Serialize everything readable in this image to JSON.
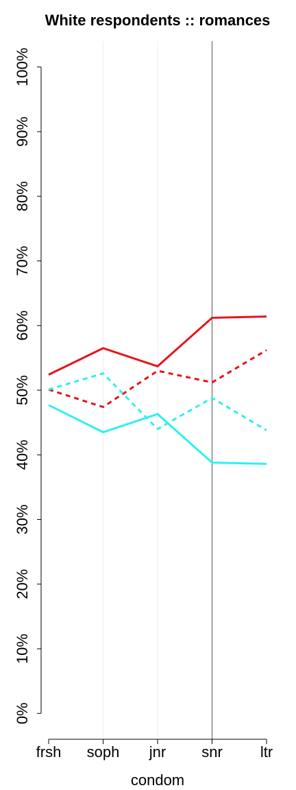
{
  "chart_data": {
    "type": "line",
    "title": "White respondents :: romances",
    "x_label": "condom",
    "categories": [
      "frsh",
      "soph",
      "jnr",
      "snr",
      "ltr"
    ],
    "series": [
      {
        "color": "#e8121a",
        "dashed": false,
        "values": [
          52.4,
          56.5,
          53.7,
          61.2,
          61.4
        ]
      },
      {
        "color": "#e8121a",
        "dashed": true,
        "values": [
          50.1,
          47.4,
          53.0,
          51.2,
          56.2
        ]
      },
      {
        "color": "#2ef0f0",
        "dashed": false,
        "values": [
          47.7,
          43.5,
          46.3,
          38.8,
          38.6
        ]
      },
      {
        "color": "#2ef0f0",
        "dashed": true,
        "values": [
          50.1,
          52.6,
          44.0,
          48.8,
          43.8
        ]
      }
    ],
    "ylim": [
      -4,
      104
    ],
    "yticks": [
      {
        "value": 0,
        "label": "0%"
      },
      {
        "value": 10,
        "label": "10%"
      },
      {
        "value": 20,
        "label": "20%"
      },
      {
        "value": 30,
        "label": "30%"
      },
      {
        "value": 40,
        "label": "40%"
      },
      {
        "value": 50,
        "label": "50%"
      },
      {
        "value": 60,
        "label": "60%"
      },
      {
        "value": 70,
        "label": "70%"
      },
      {
        "value": 80,
        "label": "80%"
      },
      {
        "value": 90,
        "label": "90%"
      },
      {
        "value": 100,
        "label": "100%"
      }
    ],
    "vline_index": 3,
    "grid": true
  }
}
